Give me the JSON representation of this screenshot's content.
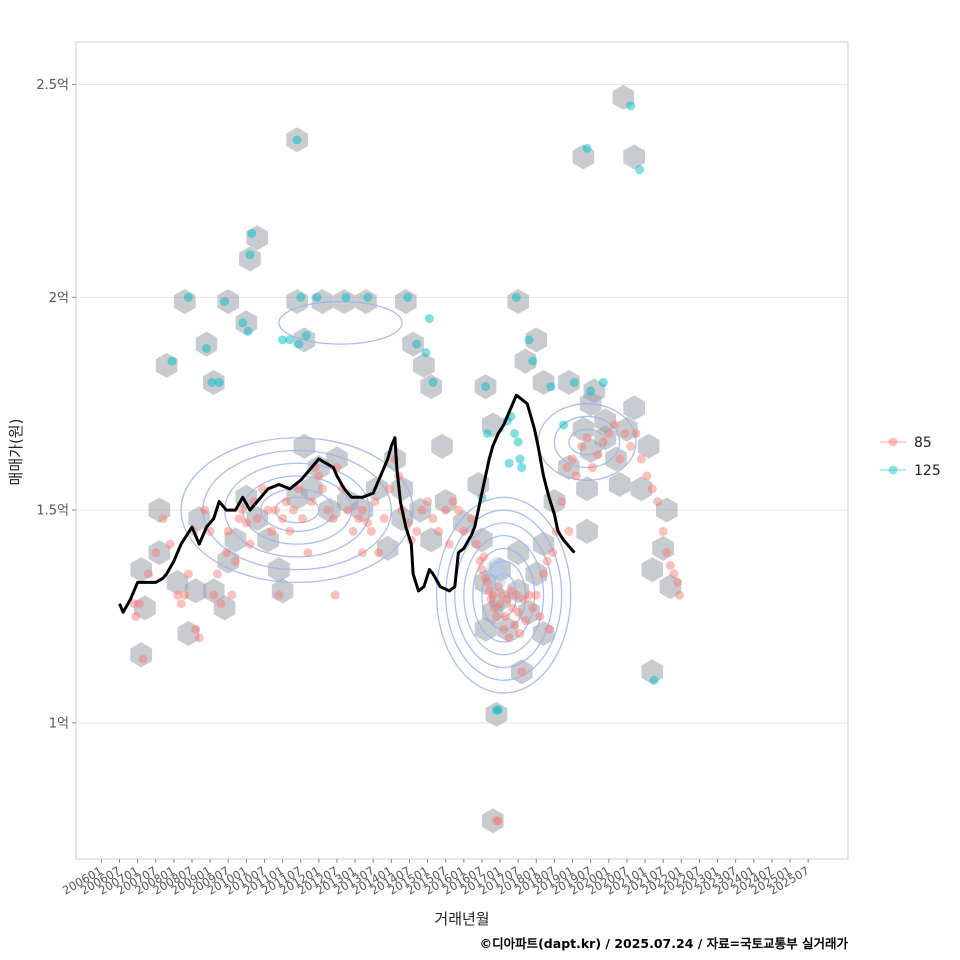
{
  "chart_data": {
    "type": "scatter",
    "xlabel": "거래년월",
    "ylabel": "매매가(원)",
    "caption": "©디아파트(dapt.kr) / 2025.07.24 / 자료=국토교통부 실거래가",
    "x_tick_labels": [
      "200601",
      "200607",
      "200701",
      "200707",
      "200801",
      "200807",
      "200901",
      "200907",
      "201001",
      "201007",
      "201101",
      "201107",
      "201201",
      "201207",
      "201301",
      "201307",
      "201401",
      "201407",
      "201501",
      "201507",
      "201601",
      "201607",
      "201701",
      "201707",
      "201801",
      "201807",
      "201901",
      "201907",
      "202001",
      "202007",
      "202101",
      "202107",
      "202201",
      "202207",
      "202301",
      "202307",
      "202401",
      "202407",
      "202501",
      "202507"
    ],
    "x_range": [
      2005.3,
      2026.6
    ],
    "y_range": [
      0.68,
      2.6
    ],
    "y_ticks": [
      {
        "value": 1.0,
        "label": "1억"
      },
      {
        "value": 1.5,
        "label": "1.5억"
      },
      {
        "value": 2.0,
        "label": "2억"
      },
      {
        "value": 2.5,
        "label": "2.5억"
      }
    ],
    "colors": {
      "s85": "#F8766D",
      "s125": "#00BFC4",
      "hex": "#9aa2ab",
      "line": "#000000",
      "contour": "#9fb3e8",
      "grid": "#e6e6e6",
      "frame": "#cccccc"
    },
    "legend": [
      {
        "key": "s85",
        "label": "85"
      },
      {
        "key": "s125",
        "label": "125"
      }
    ],
    "series_125": [
      [
        2007.95,
        1.85
      ],
      [
        2008.4,
        2.0
      ],
      [
        2008.9,
        1.88
      ],
      [
        2009.05,
        1.8
      ],
      [
        2009.25,
        1.8
      ],
      [
        2009.4,
        1.99
      ],
      [
        2009.9,
        1.94
      ],
      [
        2010.05,
        1.92
      ],
      [
        2010.1,
        2.1
      ],
      [
        2010.15,
        2.15
      ],
      [
        2011.0,
        1.9
      ],
      [
        2011.2,
        1.9
      ],
      [
        2011.4,
        2.37
      ],
      [
        2011.45,
        1.89
      ],
      [
        2011.5,
        2.0
      ],
      [
        2011.65,
        1.91
      ],
      [
        2011.95,
        2.0
      ],
      [
        2012.75,
        2.0
      ],
      [
        2013.35,
        2.0
      ],
      [
        2014.45,
        2.0
      ],
      [
        2014.7,
        1.89
      ],
      [
        2014.95,
        1.87
      ],
      [
        2015.05,
        1.95
      ],
      [
        2015.15,
        1.8
      ],
      [
        2016.6,
        1.79
      ],
      [
        2016.65,
        1.68
      ],
      [
        2016.5,
        1.53
      ],
      [
        2017.2,
        1.71
      ],
      [
        2017.25,
        1.61
      ],
      [
        2017.3,
        1.72
      ],
      [
        2017.4,
        1.68
      ],
      [
        2017.5,
        1.66
      ],
      [
        2017.45,
        2.0
      ],
      [
        2017.55,
        1.62
      ],
      [
        2017.6,
        1.6
      ],
      [
        2017.8,
        1.9
      ],
      [
        2017.9,
        1.85
      ],
      [
        2018.4,
        1.79
      ],
      [
        2018.75,
        1.7
      ],
      [
        2019.05,
        1.8
      ],
      [
        2019.4,
        2.35
      ],
      [
        2019.5,
        1.78
      ],
      [
        2019.85,
        1.8
      ],
      [
        2020.6,
        2.45
      ],
      [
        2020.85,
        2.3
      ],
      [
        2021.25,
        1.1
      ],
      [
        2016.9,
        1.03
      ],
      [
        2016.95,
        1.03
      ]
    ],
    "series_85": [
      [
        2006.9,
        1.28
      ],
      [
        2006.95,
        1.25
      ],
      [
        2007.05,
        1.28
      ],
      [
        2007.15,
        1.15
      ],
      [
        2007.3,
        1.35
      ],
      [
        2007.5,
        1.4
      ],
      [
        2007.7,
        1.48
      ],
      [
        2007.9,
        1.42
      ],
      [
        2008.1,
        1.3
      ],
      [
        2008.2,
        1.28
      ],
      [
        2008.3,
        1.3
      ],
      [
        2008.4,
        1.35
      ],
      [
        2008.55,
        1.45
      ],
      [
        2008.6,
        1.22
      ],
      [
        2008.7,
        1.2
      ],
      [
        2008.85,
        1.5
      ],
      [
        2009.0,
        1.45
      ],
      [
        2009.1,
        1.3
      ],
      [
        2009.2,
        1.35
      ],
      [
        2009.3,
        1.28
      ],
      [
        2009.45,
        1.4
      ],
      [
        2009.5,
        1.45
      ],
      [
        2009.6,
        1.3
      ],
      [
        2009.7,
        1.38
      ],
      [
        2009.8,
        1.48
      ],
      [
        2009.9,
        1.5
      ],
      [
        2010.0,
        1.47
      ],
      [
        2010.1,
        1.42
      ],
      [
        2010.2,
        1.52
      ],
      [
        2010.3,
        1.48
      ],
      [
        2010.45,
        1.55
      ],
      [
        2010.6,
        1.5
      ],
      [
        2010.7,
        1.45
      ],
      [
        2010.8,
        1.5
      ],
      [
        2010.9,
        1.3
      ],
      [
        2011.0,
        1.48
      ],
      [
        2011.1,
        1.52
      ],
      [
        2011.2,
        1.45
      ],
      [
        2011.3,
        1.5
      ],
      [
        2011.45,
        1.55
      ],
      [
        2011.55,
        1.48
      ],
      [
        2011.7,
        1.4
      ],
      [
        2011.8,
        1.52
      ],
      [
        2011.9,
        1.6
      ],
      [
        2012.0,
        1.58
      ],
      [
        2012.1,
        1.55
      ],
      [
        2012.25,
        1.5
      ],
      [
        2012.4,
        1.48
      ],
      [
        2012.5,
        1.6
      ],
      [
        2012.65,
        1.55
      ],
      [
        2012.8,
        1.5
      ],
      [
        2012.95,
        1.45
      ],
      [
        2013.1,
        1.48
      ],
      [
        2013.2,
        1.5
      ],
      [
        2013.35,
        1.47
      ],
      [
        2013.45,
        1.45
      ],
      [
        2013.55,
        1.52
      ],
      [
        2013.65,
        1.4
      ],
      [
        2013.8,
        1.48
      ],
      [
        2013.95,
        1.55
      ],
      [
        2014.1,
        1.62
      ],
      [
        2014.2,
        1.58
      ],
      [
        2014.3,
        1.5
      ],
      [
        2014.45,
        1.47
      ],
      [
        2014.55,
        1.43
      ],
      [
        2014.7,
        1.45
      ],
      [
        2014.85,
        1.5
      ],
      [
        2015.0,
        1.52
      ],
      [
        2015.15,
        1.48
      ],
      [
        2015.3,
        1.45
      ],
      [
        2015.5,
        1.5
      ],
      [
        2015.7,
        1.52
      ],
      [
        2015.85,
        1.5
      ],
      [
        2016.0,
        1.45
      ],
      [
        2016.2,
        1.48
      ],
      [
        2016.35,
        1.42
      ],
      [
        2016.45,
        1.38
      ],
      [
        2016.5,
        1.36
      ],
      [
        2016.55,
        1.39
      ],
      [
        2016.6,
        1.34
      ],
      [
        2016.65,
        1.33
      ],
      [
        2016.7,
        1.31
      ],
      [
        2016.75,
        1.29
      ],
      [
        2016.8,
        1.3
      ],
      [
        2016.85,
        1.27
      ],
      [
        2016.9,
        1.25
      ],
      [
        2016.95,
        1.32
      ],
      [
        2017.0,
        1.28
      ],
      [
        2017.05,
        1.3
      ],
      [
        2017.1,
        1.22
      ],
      [
        2017.15,
        1.25
      ],
      [
        2017.2,
        1.29
      ],
      [
        2017.25,
        1.2
      ],
      [
        2017.3,
        1.31
      ],
      [
        2017.35,
        1.27
      ],
      [
        2017.4,
        1.23
      ],
      [
        2017.45,
        1.3
      ],
      [
        2017.5,
        1.26
      ],
      [
        2017.55,
        1.21
      ],
      [
        2017.6,
        1.12
      ],
      [
        2017.65,
        1.29
      ],
      [
        2017.7,
        1.24
      ],
      [
        2017.8,
        1.3
      ],
      [
        2017.9,
        1.27
      ],
      [
        2018.0,
        1.3
      ],
      [
        2018.1,
        1.25
      ],
      [
        2018.2,
        1.35
      ],
      [
        2018.3,
        1.38
      ],
      [
        2018.35,
        1.22
      ],
      [
        2018.45,
        1.4
      ],
      [
        2018.55,
        1.45
      ],
      [
        2018.7,
        1.52
      ],
      [
        2018.85,
        1.6
      ],
      [
        2019.0,
        1.62
      ],
      [
        2019.1,
        1.58
      ],
      [
        2019.25,
        1.65
      ],
      [
        2019.4,
        1.67
      ],
      [
        2019.55,
        1.6
      ],
      [
        2019.7,
        1.63
      ],
      [
        2019.85,
        1.66
      ],
      [
        2020.0,
        1.68
      ],
      [
        2020.15,
        1.7
      ],
      [
        2020.3,
        1.62
      ],
      [
        2020.45,
        1.68
      ],
      [
        2020.6,
        1.65
      ],
      [
        2020.75,
        1.68
      ],
      [
        2020.9,
        1.62
      ],
      [
        2021.05,
        1.58
      ],
      [
        2021.2,
        1.55
      ],
      [
        2021.35,
        1.52
      ],
      [
        2021.5,
        1.45
      ],
      [
        2021.6,
        1.4
      ],
      [
        2021.7,
        1.37
      ],
      [
        2021.8,
        1.35
      ],
      [
        2021.9,
        1.33
      ],
      [
        2021.95,
        1.3
      ],
      [
        2016.9,
        0.77
      ],
      [
        2016.95,
        0.77
      ],
      [
        2012.45,
        1.3
      ],
      [
        2013.2,
        1.4
      ],
      [
        2015.6,
        1.42
      ],
      [
        2018.9,
        1.45
      ]
    ],
    "hexbins": [
      [
        2007.1,
        1.36
      ],
      [
        2007.2,
        1.27
      ],
      [
        2007.1,
        1.16
      ],
      [
        2007.6,
        1.5
      ],
      [
        2007.6,
        1.4
      ],
      [
        2008.1,
        1.33
      ],
      [
        2008.6,
        1.31
      ],
      [
        2008.4,
        1.21
      ],
      [
        2008.7,
        1.48
      ],
      [
        2009.1,
        1.31
      ],
      [
        2009.4,
        1.27
      ],
      [
        2009.5,
        1.38
      ],
      [
        2010.0,
        1.53
      ],
      [
        2009.7,
        1.43
      ],
      [
        2010.3,
        1.48
      ],
      [
        2010.9,
        1.36
      ],
      [
        2011.0,
        1.31
      ],
      [
        2011.4,
        1.53
      ],
      [
        2011.8,
        1.55
      ],
      [
        2012.0,
        1.6
      ],
      [
        2012.3,
        1.5
      ],
      [
        2012.8,
        1.52
      ],
      [
        2013.2,
        1.5
      ],
      [
        2013.6,
        1.55
      ],
      [
        2013.9,
        1.41
      ],
      [
        2014.3,
        1.48
      ],
      [
        2014.8,
        1.5
      ],
      [
        2015.1,
        1.43
      ],
      [
        2015.5,
        1.52
      ],
      [
        2016.0,
        1.47
      ],
      [
        2016.5,
        1.43
      ],
      [
        2016.4,
        1.56
      ],
      [
        2016.6,
        1.33
      ],
      [
        2016.8,
        1.26
      ],
      [
        2016.6,
        1.22
      ],
      [
        2017.0,
        1.36
      ],
      [
        2017.0,
        1.29
      ],
      [
        2017.2,
        1.22
      ],
      [
        2017.5,
        1.31
      ],
      [
        2017.5,
        1.4
      ],
      [
        2017.8,
        1.26
      ],
      [
        2018.0,
        1.35
      ],
      [
        2018.2,
        1.42
      ],
      [
        2018.2,
        1.21
      ],
      [
        2017.6,
        1.12
      ],
      [
        2011.6,
        1.65
      ],
      [
        2012.5,
        1.62
      ],
      [
        2014.1,
        1.62
      ],
      [
        2018.9,
        1.6
      ],
      [
        2019.3,
        1.69
      ],
      [
        2019.5,
        1.64
      ],
      [
        2019.9,
        1.67
      ],
      [
        2020.2,
        1.62
      ],
      [
        2020.5,
        1.69
      ],
      [
        2020.7,
        1.74
      ],
      [
        2019.6,
        1.78
      ],
      [
        2019.9,
        1.71
      ],
      [
        2020.9,
        1.55
      ],
      [
        2019.4,
        1.55
      ],
      [
        2021.2,
        1.36
      ],
      [
        2021.5,
        1.41
      ],
      [
        2021.7,
        1.32
      ],
      [
        2021.6,
        1.5
      ],
      [
        2021.1,
        1.65
      ],
      [
        2007.8,
        1.84
      ],
      [
        2008.3,
        1.99
      ],
      [
        2008.9,
        1.89
      ],
      [
        2009.1,
        1.8
      ],
      [
        2009.5,
        1.99
      ],
      [
        2010.0,
        1.94
      ],
      [
        2010.1,
        2.09
      ],
      [
        2010.3,
        2.14
      ],
      [
        2011.4,
        1.99
      ],
      [
        2011.6,
        1.9
      ],
      [
        2011.4,
        2.37
      ],
      [
        2012.1,
        1.99
      ],
      [
        2012.7,
        1.99
      ],
      [
        2013.3,
        1.99
      ],
      [
        2014.4,
        1.99
      ],
      [
        2014.6,
        1.89
      ],
      [
        2014.9,
        1.84
      ],
      [
        2015.1,
        1.79
      ],
      [
        2016.6,
        1.79
      ],
      [
        2016.8,
        1.7
      ],
      [
        2017.5,
        1.99
      ],
      [
        2017.7,
        1.85
      ],
      [
        2018.0,
        1.9
      ],
      [
        2018.2,
        1.8
      ],
      [
        2018.9,
        1.8
      ],
      [
        2019.3,
        2.33
      ],
      [
        2019.5,
        1.75
      ],
      [
        2020.4,
        2.47
      ],
      [
        2020.7,
        2.33
      ],
      [
        2021.2,
        1.12
      ],
      [
        2016.9,
        1.02
      ],
      [
        2016.8,
        0.77
      ],
      [
        2019.4,
        1.45
      ],
      [
        2018.5,
        1.52
      ],
      [
        2020.3,
        1.56
      ],
      [
        2015.4,
        1.65
      ],
      [
        2014.3,
        1.55
      ],
      [
        2010.6,
        1.43
      ]
    ],
    "trend_line": [
      [
        2006.5,
        1.28
      ],
      [
        2006.6,
        1.26
      ],
      [
        2006.8,
        1.29
      ],
      [
        2007.0,
        1.33
      ],
      [
        2007.5,
        1.33
      ],
      [
        2007.7,
        1.34
      ],
      [
        2007.8,
        1.35
      ],
      [
        2008.0,
        1.38
      ],
      [
        2008.2,
        1.42
      ],
      [
        2008.5,
        1.46
      ],
      [
        2008.7,
        1.42
      ],
      [
        2008.9,
        1.46
      ],
      [
        2009.1,
        1.48
      ],
      [
        2009.25,
        1.52
      ],
      [
        2009.45,
        1.5
      ],
      [
        2009.7,
        1.5
      ],
      [
        2009.9,
        1.53
      ],
      [
        2010.1,
        1.5
      ],
      [
        2010.3,
        1.52
      ],
      [
        2010.6,
        1.55
      ],
      [
        2010.9,
        1.56
      ],
      [
        2011.2,
        1.55
      ],
      [
        2011.5,
        1.57
      ],
      [
        2011.8,
        1.6
      ],
      [
        2012.0,
        1.62
      ],
      [
        2012.2,
        1.61
      ],
      [
        2012.4,
        1.6
      ],
      [
        2012.5,
        1.58
      ],
      [
        2012.7,
        1.55
      ],
      [
        2012.9,
        1.53
      ],
      [
        2013.2,
        1.53
      ],
      [
        2013.5,
        1.54
      ],
      [
        2013.7,
        1.58
      ],
      [
        2013.9,
        1.62
      ],
      [
        2014.0,
        1.65
      ],
      [
        2014.1,
        1.67
      ],
      [
        2014.15,
        1.6
      ],
      [
        2014.25,
        1.52
      ],
      [
        2014.4,
        1.46
      ],
      [
        2014.55,
        1.42
      ],
      [
        2014.6,
        1.35
      ],
      [
        2014.75,
        1.31
      ],
      [
        2014.9,
        1.32
      ],
      [
        2015.05,
        1.36
      ],
      [
        2015.15,
        1.35
      ],
      [
        2015.35,
        1.32
      ],
      [
        2015.6,
        1.31
      ],
      [
        2015.75,
        1.32
      ],
      [
        2015.85,
        1.4
      ],
      [
        2016.0,
        1.41
      ],
      [
        2016.2,
        1.44
      ],
      [
        2016.3,
        1.46
      ],
      [
        2016.4,
        1.5
      ],
      [
        2016.55,
        1.56
      ],
      [
        2016.7,
        1.62
      ],
      [
        2016.8,
        1.65
      ],
      [
        2016.95,
        1.68
      ],
      [
        2017.1,
        1.7
      ],
      [
        2017.2,
        1.72
      ],
      [
        2017.3,
        1.74
      ],
      [
        2017.45,
        1.77
      ],
      [
        2017.6,
        1.76
      ],
      [
        2017.75,
        1.75
      ],
      [
        2017.85,
        1.72
      ],
      [
        2017.95,
        1.69
      ],
      [
        2018.05,
        1.65
      ],
      [
        2018.2,
        1.58
      ],
      [
        2018.35,
        1.53
      ],
      [
        2018.5,
        1.49
      ],
      [
        2018.6,
        1.45
      ],
      [
        2018.75,
        1.43
      ],
      [
        2018.85,
        1.42
      ],
      [
        2018.95,
        1.41
      ],
      [
        2019.05,
        1.4
      ]
    ],
    "contour_centers": [
      {
        "cx": 2017.1,
        "cy": 1.3,
        "rx": [
          0.35,
          0.6,
          0.85,
          1.1,
          1.35,
          1.6,
          1.85
        ],
        "ry": [
          0.05,
          0.08,
          0.11,
          0.14,
          0.17,
          0.2,
          0.23
        ]
      },
      {
        "cx": 2011.4,
        "cy": 1.5,
        "rx": [
          0.6,
          1.0,
          1.5,
          2.0,
          2.6,
          3.2
        ],
        "ry": [
          0.03,
          0.05,
          0.08,
          0.11,
          0.14,
          0.17
        ]
      },
      {
        "cx": 2019.4,
        "cy": 1.66,
        "rx": [
          0.5,
          0.9,
          1.35
        ],
        "ry": [
          0.03,
          0.06,
          0.09
        ]
      },
      {
        "cx": 2012.6,
        "cy": 1.94,
        "rx": [
          1.7
        ],
        "ry": [
          0.05
        ]
      }
    ]
  }
}
